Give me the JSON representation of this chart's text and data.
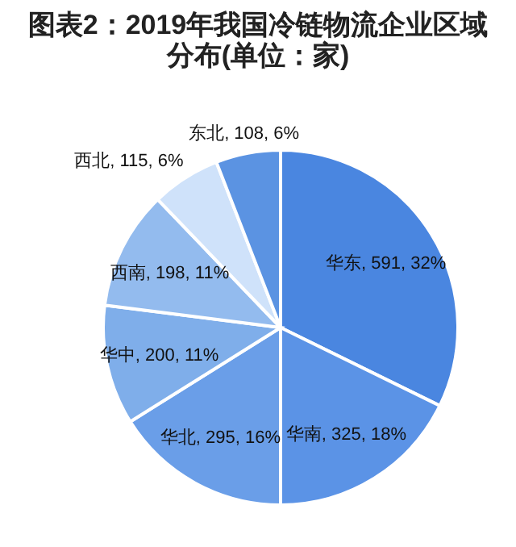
{
  "chart_data": {
    "type": "pie",
    "title": "图表2：2019年我国冷链物流企业区域分布(单位：家)",
    "categories": [
      "华东",
      "华南",
      "华北",
      "华中",
      "西南",
      "西北",
      "东北"
    ],
    "values": [
      591,
      325,
      295,
      200,
      198,
      115,
      108
    ],
    "value_labels": [
      ", 591, 32%",
      ", 325, 18%",
      ", 295, 16%",
      ", 200, 11%",
      ", 198, 11%",
      ", 115, 6%",
      ", 108, 6%"
    ],
    "colors": [
      "#4a86e0",
      "#5b93e6",
      "#6a9ee8",
      "#7faeea",
      "#93bbee",
      "#cfe2fa",
      "#5b93e2"
    ]
  }
}
